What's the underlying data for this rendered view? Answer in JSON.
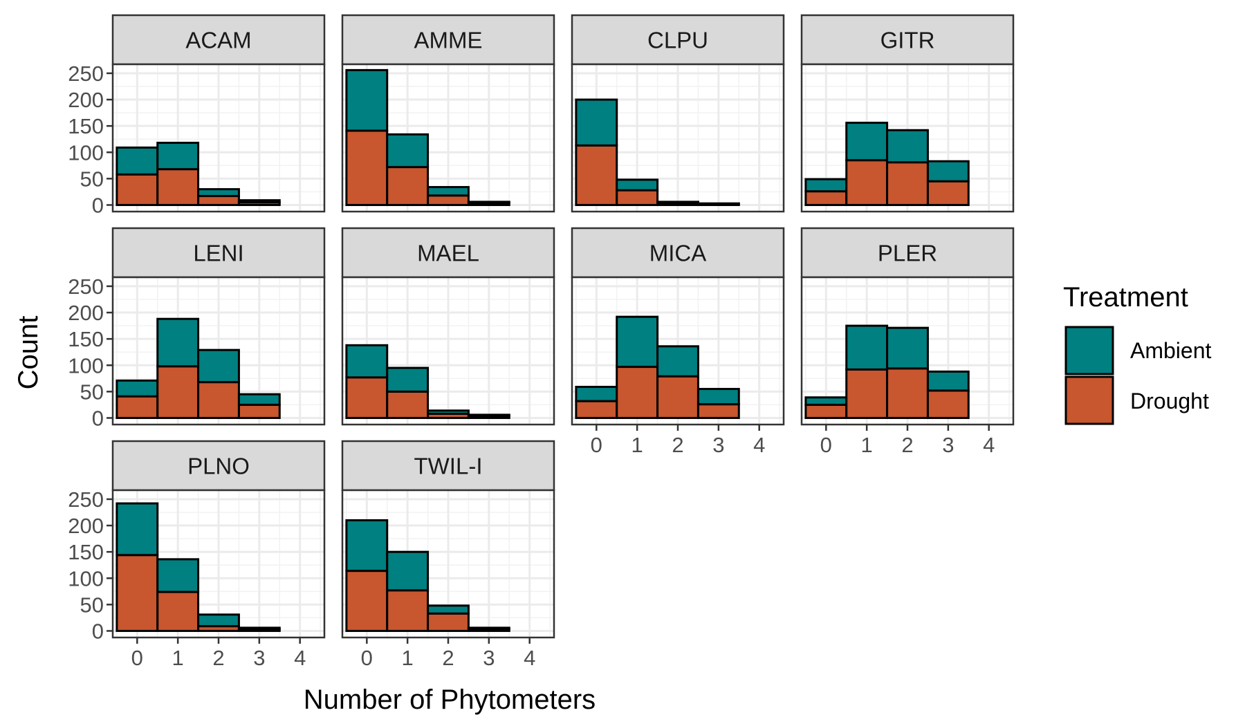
{
  "chart_data": {
    "type": "bar",
    "stacked": true,
    "xlabel": "Number of Phytometers",
    "ylabel": "Count",
    "ylim": [
      0,
      250
    ],
    "y_ticks": [
      0,
      50,
      100,
      150,
      200,
      250
    ],
    "categories": [
      "0",
      "1",
      "2",
      "3",
      "4"
    ],
    "grid": true,
    "legend": {
      "title": "Treatment",
      "placement": "right",
      "entries": [
        {
          "name": "Ambient",
          "color": "#008080"
        },
        {
          "name": "Drought",
          "color": "#C8562E"
        }
      ]
    },
    "colors": {
      "Ambient": "#008080",
      "Drought": "#C8562E"
    },
    "panels": [
      {
        "name": "ACAM",
        "ambient": [
          51,
          50,
          13,
          4,
          0
        ],
        "drought": [
          58,
          68,
          17,
          5,
          0
        ]
      },
      {
        "name": "AMME",
        "ambient": [
          115,
          62,
          16,
          2,
          0
        ],
        "drought": [
          141,
          72,
          18,
          4,
          0
        ]
      },
      {
        "name": "CLPU",
        "ambient": [
          87,
          20,
          2,
          1,
          0
        ],
        "drought": [
          113,
          28,
          4,
          2,
          0
        ]
      },
      {
        "name": "GITR",
        "ambient": [
          23,
          71,
          61,
          38,
          0
        ],
        "drought": [
          26,
          85,
          81,
          45,
          0
        ]
      },
      {
        "name": "LENI",
        "ambient": [
          30,
          90,
          61,
          20,
          0
        ],
        "drought": [
          41,
          98,
          68,
          25,
          0
        ]
      },
      {
        "name": "MAEL",
        "ambient": [
          61,
          45,
          6,
          2,
          0
        ],
        "drought": [
          77,
          50,
          8,
          4,
          0
        ]
      },
      {
        "name": "MICA",
        "ambient": [
          27,
          95,
          57,
          29,
          0
        ],
        "drought": [
          32,
          97,
          79,
          26,
          0
        ]
      },
      {
        "name": "PLER",
        "ambient": [
          14,
          83,
          77,
          36,
          0
        ],
        "drought": [
          25,
          92,
          94,
          52,
          0
        ]
      },
      {
        "name": "PLNO",
        "ambient": [
          98,
          62,
          22,
          3,
          0
        ],
        "drought": [
          144,
          74,
          9,
          3,
          0
        ]
      },
      {
        "name": "TWIL-I",
        "ambient": [
          96,
          73,
          15,
          2,
          0
        ],
        "drought": [
          114,
          77,
          33,
          4,
          0
        ]
      }
    ]
  }
}
